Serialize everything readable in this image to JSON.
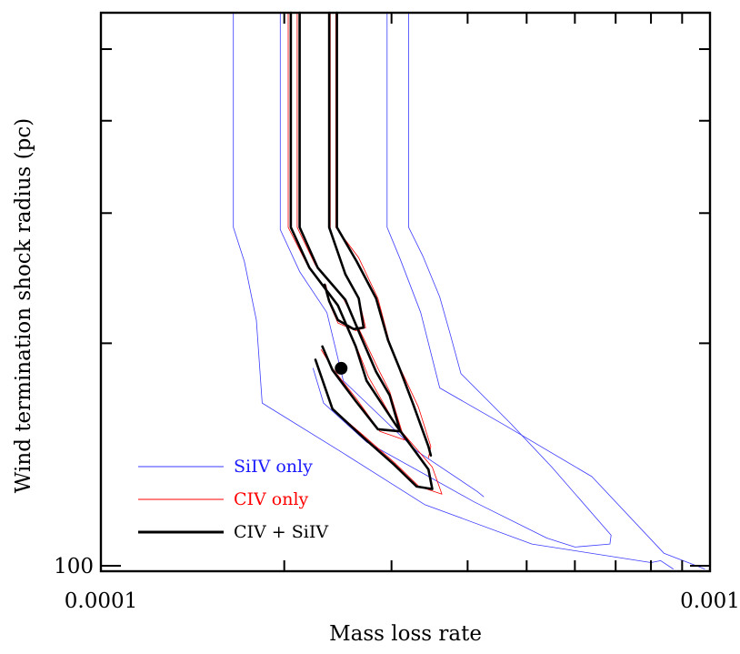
{
  "chart_data": {
    "type": "line",
    "title": "",
    "xlabel": "Mass loss rate",
    "ylabel": "Wind termination shock radius (pc)",
    "x_scale": "log",
    "y_scale": "log",
    "xlim": [
      0.0001,
      0.001
    ],
    "ylim": [
      100,
      560
    ],
    "x_tick_labels": [
      {
        "value": 0.0001,
        "label": "0.0001"
      },
      {
        "value": 0.001,
        "label": "0.001"
      }
    ],
    "y_tick_labels": [
      {
        "value": 100,
        "label": "100"
      }
    ],
    "grid": false,
    "legend_position": "lower-left",
    "legend": [
      {
        "label": "SiIV only",
        "color": "#3b3bff",
        "line": "thin"
      },
      {
        "label": "CIV only",
        "color": "#ff0000",
        "line": "thin"
      },
      {
        "label": "CIV + SiIV",
        "color": "#000000",
        "line": "thick"
      }
    ],
    "best_fit_point": {
      "x": 0.000248,
      "y": 185
    },
    "series": [
      {
        "group": "SiIV only",
        "color": "#3b3bff",
        "width": 0.8,
        "points": [
          [
            0.000165,
            560
          ],
          [
            0.000165,
            287
          ],
          [
            0.000172,
            258
          ],
          [
            0.00018,
            215
          ],
          [
            0.000184,
            166
          ],
          [
            0.00025,
            142
          ],
          [
            0.00034,
            121
          ],
          [
            0.00051,
            107
          ],
          [
            0.0008,
            101
          ],
          [
            0.00083,
            101.6
          ],
          [
            0.00087,
            99
          ]
        ]
      },
      {
        "group": "SiIV only",
        "color": "#3b3bff",
        "width": 0.8,
        "points": [
          [
            0.000197,
            560
          ],
          [
            0.000197,
            285
          ],
          [
            0.000212,
            250
          ],
          [
            0.000235,
            220
          ],
          [
            0.00025,
            178
          ],
          [
            0.00033,
            143
          ],
          [
            0.000415,
            126
          ],
          [
            0.000425,
            124
          ]
        ]
      },
      {
        "group": "SiIV only",
        "color": "#3b3bff",
        "width": 0.8,
        "points": [
          [
            0.000295,
            560
          ],
          [
            0.000295,
            287
          ],
          [
            0.00031,
            260
          ],
          [
            0.000335,
            220
          ],
          [
            0.00036,
            174
          ],
          [
            0.00046,
            155
          ],
          [
            0.00064,
            132
          ],
          [
            0.00084,
            104
          ],
          [
            0.00098,
            99
          ]
        ]
      },
      {
        "group": "SiIV only",
        "color": "#3b3bff",
        "width": 0.8,
        "points": [
          [
            0.00032,
            560
          ],
          [
            0.00032,
            287
          ],
          [
            0.000338,
            262
          ],
          [
            0.00036,
            231
          ],
          [
            0.000375,
            205
          ],
          [
            0.00039,
            182
          ],
          [
            0.00047,
            156
          ],
          [
            0.00055,
            136
          ],
          [
            0.000688,
            110
          ],
          [
            0.000685,
            107
          ],
          [
            0.0006,
            106
          ],
          [
            0.00054,
            109
          ],
          [
            0.00041,
            122
          ],
          [
            0.00034,
            133
          ],
          [
            0.000273,
            147
          ],
          [
            0.000232,
            166
          ],
          [
            0.000223,
            185
          ]
        ]
      },
      {
        "group": "CIV only",
        "color": "#ff0000",
        "width": 0.8,
        "points": [
          [
            0.000203,
            560
          ],
          [
            0.000203,
            287
          ],
          [
            0.00022,
            252
          ],
          [
            0.000245,
            225
          ],
          [
            0.000262,
            199
          ],
          [
            0.000275,
            180
          ],
          [
            0.000305,
            155
          ],
          [
            0.00035,
            136
          ],
          [
            0.000363,
            125
          ],
          [
            0.000333,
            128
          ],
          [
            0.000303,
            138
          ],
          [
            0.00027,
            150
          ],
          [
            0.00024,
            163
          ],
          [
            0.000226,
            189
          ]
        ]
      },
      {
        "group": "CIV only",
        "color": "#ff0000",
        "width": 0.8,
        "points": [
          [
            0.00021,
            560
          ],
          [
            0.00021,
            287
          ],
          [
            0.000225,
            255
          ],
          [
            0.00025,
            230
          ],
          [
            0.00027,
            203
          ],
          [
            0.000285,
            185
          ],
          [
            0.000298,
            172
          ],
          [
            0.000315,
            148
          ],
          [
            0.000287,
            152
          ],
          [
            0.000263,
            168
          ],
          [
            0.00024,
            185
          ],
          [
            0.00023,
            196
          ]
        ]
      },
      {
        "group": "CIV only",
        "color": "#ff0000",
        "width": 0.8,
        "points": [
          [
            0.000238,
            560
          ],
          [
            0.000238,
            285
          ],
          [
            0.000252,
            249
          ],
          [
            0.000265,
            230
          ],
          [
            0.000272,
            210
          ],
          [
            0.000262,
            208
          ],
          [
            0.000245,
            213
          ],
          [
            0.000238,
            225
          ],
          [
            0.000234,
            240
          ]
        ]
      },
      {
        "group": "CIV only",
        "color": "#ff0000",
        "width": 0.8,
        "points": [
          [
            0.000243,
            560
          ],
          [
            0.000243,
            287
          ],
          [
            0.000265,
            261
          ],
          [
            0.000285,
            230
          ],
          [
            0.000298,
            200
          ],
          [
            0.00031,
            185
          ],
          [
            0.000332,
            164
          ],
          [
            0.000348,
            145
          ],
          [
            0.000345,
            140
          ]
        ]
      },
      {
        "group": "CIV + SiIV",
        "color": "#000000",
        "width": 2.6,
        "points": [
          [
            0.000205,
            560
          ],
          [
            0.000205,
            287
          ],
          [
            0.00022,
            253
          ],
          [
            0.000245,
            225
          ],
          [
            0.000262,
            198
          ],
          [
            0.000273,
            178
          ],
          [
            0.000305,
            155
          ],
          [
            0.000345,
            135
          ],
          [
            0.00035,
            127
          ],
          [
            0.00033,
            128
          ],
          [
            0.000303,
            137
          ],
          [
            0.00027,
            149
          ],
          [
            0.00024,
            163
          ],
          [
            0.000225,
            190
          ]
        ]
      },
      {
        "group": "CIV + SiIV",
        "color": "#000000",
        "width": 2.6,
        "points": [
          [
            0.000212,
            560
          ],
          [
            0.000212,
            287
          ],
          [
            0.000227,
            253
          ],
          [
            0.000252,
            229
          ],
          [
            0.000268,
            203
          ],
          [
            0.000283,
            183
          ],
          [
            0.000298,
            170
          ],
          [
            0.00031,
            152
          ],
          [
            0.000285,
            153
          ],
          [
            0.000262,
            167
          ],
          [
            0.00024,
            184
          ],
          [
            0.000231,
            198
          ]
        ]
      },
      {
        "group": "CIV + SiIV",
        "color": "#000000",
        "width": 2.6,
        "points": [
          [
            0.000237,
            560
          ],
          [
            0.000237,
            287
          ],
          [
            0.000252,
            248
          ],
          [
            0.000265,
            230
          ],
          [
            0.00027,
            210
          ],
          [
            0.00026,
            209
          ],
          [
            0.000245,
            215
          ],
          [
            0.000237,
            228
          ],
          [
            0.000233,
            240
          ]
        ]
      },
      {
        "group": "CIV + SiIV",
        "color": "#000000",
        "width": 2.6,
        "points": [
          [
            0.000244,
            560
          ],
          [
            0.000244,
            287
          ],
          [
            0.000263,
            258
          ],
          [
            0.000283,
            230
          ],
          [
            0.000296,
            202
          ],
          [
            0.00031,
            184
          ],
          [
            0.000325,
            166
          ],
          [
            0.000345,
            145
          ],
          [
            0.000348,
            141
          ]
        ]
      }
    ]
  }
}
